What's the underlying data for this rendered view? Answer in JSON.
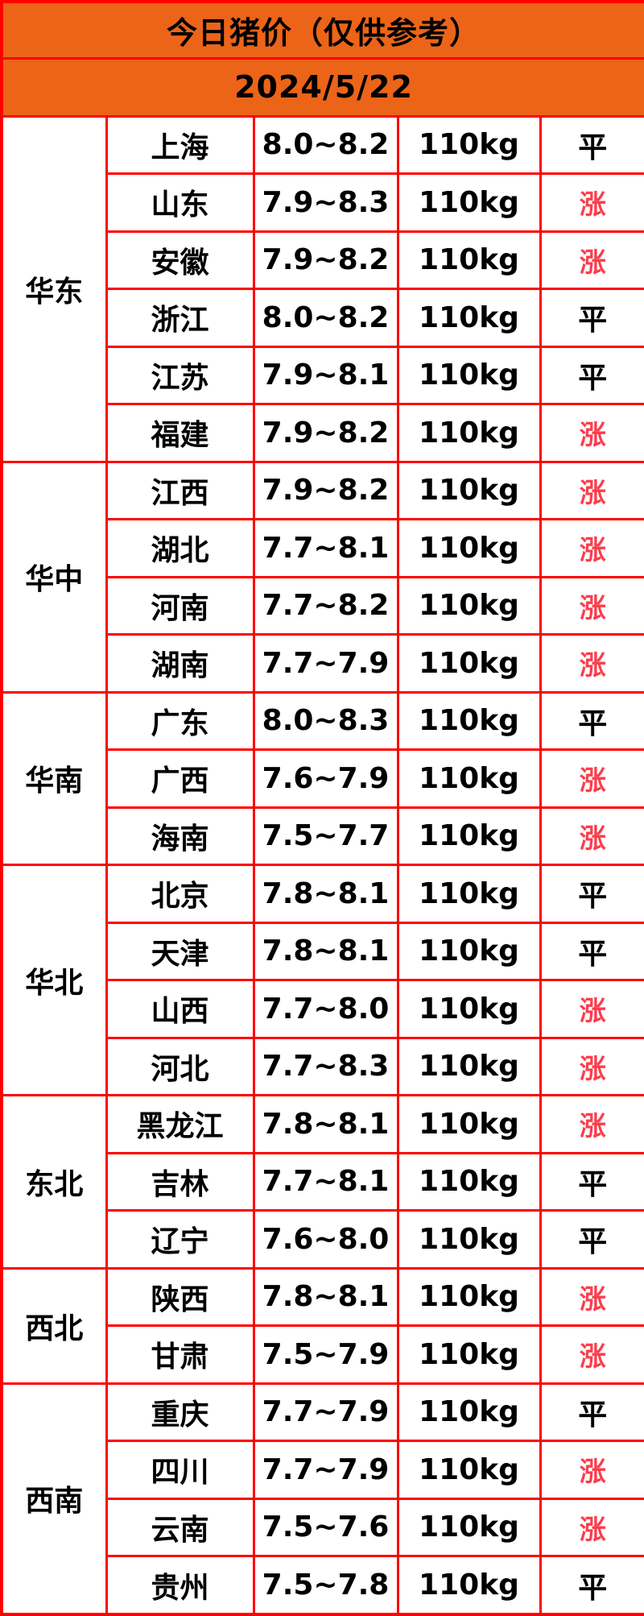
{
  "header": {
    "title": "今日猪价（仅供参考）",
    "date": "2024/5/22"
  },
  "colors": {
    "header_bg": "#ec6418",
    "border": "#ff0000",
    "rise": "#fa3e4d",
    "text": "#000000"
  },
  "table": {
    "groups": [
      {
        "region": "华东",
        "rows": [
          {
            "province": "上海",
            "price": "8.0~8.2",
            "weight": "110kg",
            "trend": "平",
            "trend_type": "flat"
          },
          {
            "province": "山东",
            "price": "7.9~8.3",
            "weight": "110kg",
            "trend": "涨",
            "trend_type": "rise"
          },
          {
            "province": "安徽",
            "price": "7.9~8.2",
            "weight": "110kg",
            "trend": "涨",
            "trend_type": "rise"
          },
          {
            "province": "浙江",
            "price": "8.0~8.2",
            "weight": "110kg",
            "trend": "平",
            "trend_type": "flat"
          },
          {
            "province": "江苏",
            "price": "7.9~8.1",
            "weight": "110kg",
            "trend": "平",
            "trend_type": "flat"
          },
          {
            "province": "福建",
            "price": "7.9~8.2",
            "weight": "110kg",
            "trend": "涨",
            "trend_type": "rise"
          }
        ]
      },
      {
        "region": "华中",
        "rows": [
          {
            "province": "江西",
            "price": "7.9~8.2",
            "weight": "110kg",
            "trend": "涨",
            "trend_type": "rise"
          },
          {
            "province": "湖北",
            "price": "7.7~8.1",
            "weight": "110kg",
            "trend": "涨",
            "trend_type": "rise"
          },
          {
            "province": "河南",
            "price": "7.7~8.2",
            "weight": "110kg",
            "trend": "涨",
            "trend_type": "rise"
          },
          {
            "province": "湖南",
            "price": "7.7~7.9",
            "weight": "110kg",
            "trend": "涨",
            "trend_type": "rise"
          }
        ]
      },
      {
        "region": "华南",
        "rows": [
          {
            "province": "广东",
            "price": "8.0~8.3",
            "weight": "110kg",
            "trend": "平",
            "trend_type": "flat"
          },
          {
            "province": "广西",
            "price": "7.6~7.9",
            "weight": "110kg",
            "trend": "涨",
            "trend_type": "rise"
          },
          {
            "province": "海南",
            "price": "7.5~7.7",
            "weight": "110kg",
            "trend": "涨",
            "trend_type": "rise"
          }
        ]
      },
      {
        "region": "华北",
        "rows": [
          {
            "province": "北京",
            "price": "7.8~8.1",
            "weight": "110kg",
            "trend": "平",
            "trend_type": "flat"
          },
          {
            "province": "天津",
            "price": "7.8~8.1",
            "weight": "110kg",
            "trend": "平",
            "trend_type": "flat"
          },
          {
            "province": "山西",
            "price": "7.7~8.0",
            "weight": "110kg",
            "trend": "涨",
            "trend_type": "rise"
          },
          {
            "province": "河北",
            "price": "7.7~8.3",
            "weight": "110kg",
            "trend": "涨",
            "trend_type": "rise"
          }
        ]
      },
      {
        "region": "东北",
        "rows": [
          {
            "province": "黑龙江",
            "price": "7.8~8.1",
            "weight": "110kg",
            "trend": "涨",
            "trend_type": "rise"
          },
          {
            "province": "吉林",
            "price": "7.7~8.1",
            "weight": "110kg",
            "trend": "平",
            "trend_type": "flat"
          },
          {
            "province": "辽宁",
            "price": "7.6~8.0",
            "weight": "110kg",
            "trend": "平",
            "trend_type": "flat"
          }
        ]
      },
      {
        "region": "西北",
        "rows": [
          {
            "province": "陕西",
            "price": "7.8~8.1",
            "weight": "110kg",
            "trend": "涨",
            "trend_type": "rise"
          },
          {
            "province": "甘肃",
            "price": "7.5~7.9",
            "weight": "110kg",
            "trend": "涨",
            "trend_type": "rise"
          }
        ]
      },
      {
        "region": "西南",
        "rows": [
          {
            "province": "重庆",
            "price": "7.7~7.9",
            "weight": "110kg",
            "trend": "平",
            "trend_type": "flat"
          },
          {
            "province": "四川",
            "price": "7.7~7.9",
            "weight": "110kg",
            "trend": "涨",
            "trend_type": "rise"
          },
          {
            "province": "云南",
            "price": "7.5~7.6",
            "weight": "110kg",
            "trend": "涨",
            "trend_type": "rise"
          },
          {
            "province": "贵州",
            "price": "7.5~7.8",
            "weight": "110kg",
            "trend": "平",
            "trend_type": "flat"
          }
        ]
      }
    ]
  },
  "chart_data": {
    "type": "table",
    "title": "今日猪价（仅供参考）",
    "date": "2024/5/22",
    "columns": [
      "region",
      "province",
      "price_range",
      "weight",
      "trend"
    ],
    "rows": [
      [
        "华东",
        "上海",
        "8.0~8.2",
        "110kg",
        "平"
      ],
      [
        "华东",
        "山东",
        "7.9~8.3",
        "110kg",
        "涨"
      ],
      [
        "华东",
        "安徽",
        "7.9~8.2",
        "110kg",
        "涨"
      ],
      [
        "华东",
        "浙江",
        "8.0~8.2",
        "110kg",
        "平"
      ],
      [
        "华东",
        "江苏",
        "7.9~8.1",
        "110kg",
        "平"
      ],
      [
        "华东",
        "福建",
        "7.9~8.2",
        "110kg",
        "涨"
      ],
      [
        "华中",
        "江西",
        "7.9~8.2",
        "110kg",
        "涨"
      ],
      [
        "华中",
        "湖北",
        "7.7~8.1",
        "110kg",
        "涨"
      ],
      [
        "华中",
        "河南",
        "7.7~8.2",
        "110kg",
        "涨"
      ],
      [
        "华中",
        "湖南",
        "7.7~7.9",
        "110kg",
        "涨"
      ],
      [
        "华南",
        "广东",
        "8.0~8.3",
        "110kg",
        "平"
      ],
      [
        "华南",
        "广西",
        "7.6~7.9",
        "110kg",
        "涨"
      ],
      [
        "华南",
        "海南",
        "7.5~7.7",
        "110kg",
        "涨"
      ],
      [
        "华北",
        "北京",
        "7.8~8.1",
        "110kg",
        "平"
      ],
      [
        "华北",
        "天津",
        "7.8~8.1",
        "110kg",
        "平"
      ],
      [
        "华北",
        "山西",
        "7.7~8.0",
        "110kg",
        "涨"
      ],
      [
        "华北",
        "河北",
        "7.7~8.3",
        "110kg",
        "涨"
      ],
      [
        "东北",
        "黑龙江",
        "7.8~8.1",
        "110kg",
        "涨"
      ],
      [
        "东北",
        "吉林",
        "7.7~8.1",
        "110kg",
        "平"
      ],
      [
        "东北",
        "辽宁",
        "7.6~8.0",
        "110kg",
        "平"
      ],
      [
        "西北",
        "陕西",
        "7.8~8.1",
        "110kg",
        "涨"
      ],
      [
        "西北",
        "甘肃",
        "7.5~7.9",
        "110kg",
        "涨"
      ],
      [
        "西南",
        "重庆",
        "7.7~7.9",
        "110kg",
        "平"
      ],
      [
        "西南",
        "四川",
        "7.7~7.9",
        "110kg",
        "涨"
      ],
      [
        "西南",
        "云南",
        "7.5~7.6",
        "110kg",
        "涨"
      ],
      [
        "西南",
        "贵州",
        "7.5~7.8",
        "110kg",
        "平"
      ]
    ]
  }
}
